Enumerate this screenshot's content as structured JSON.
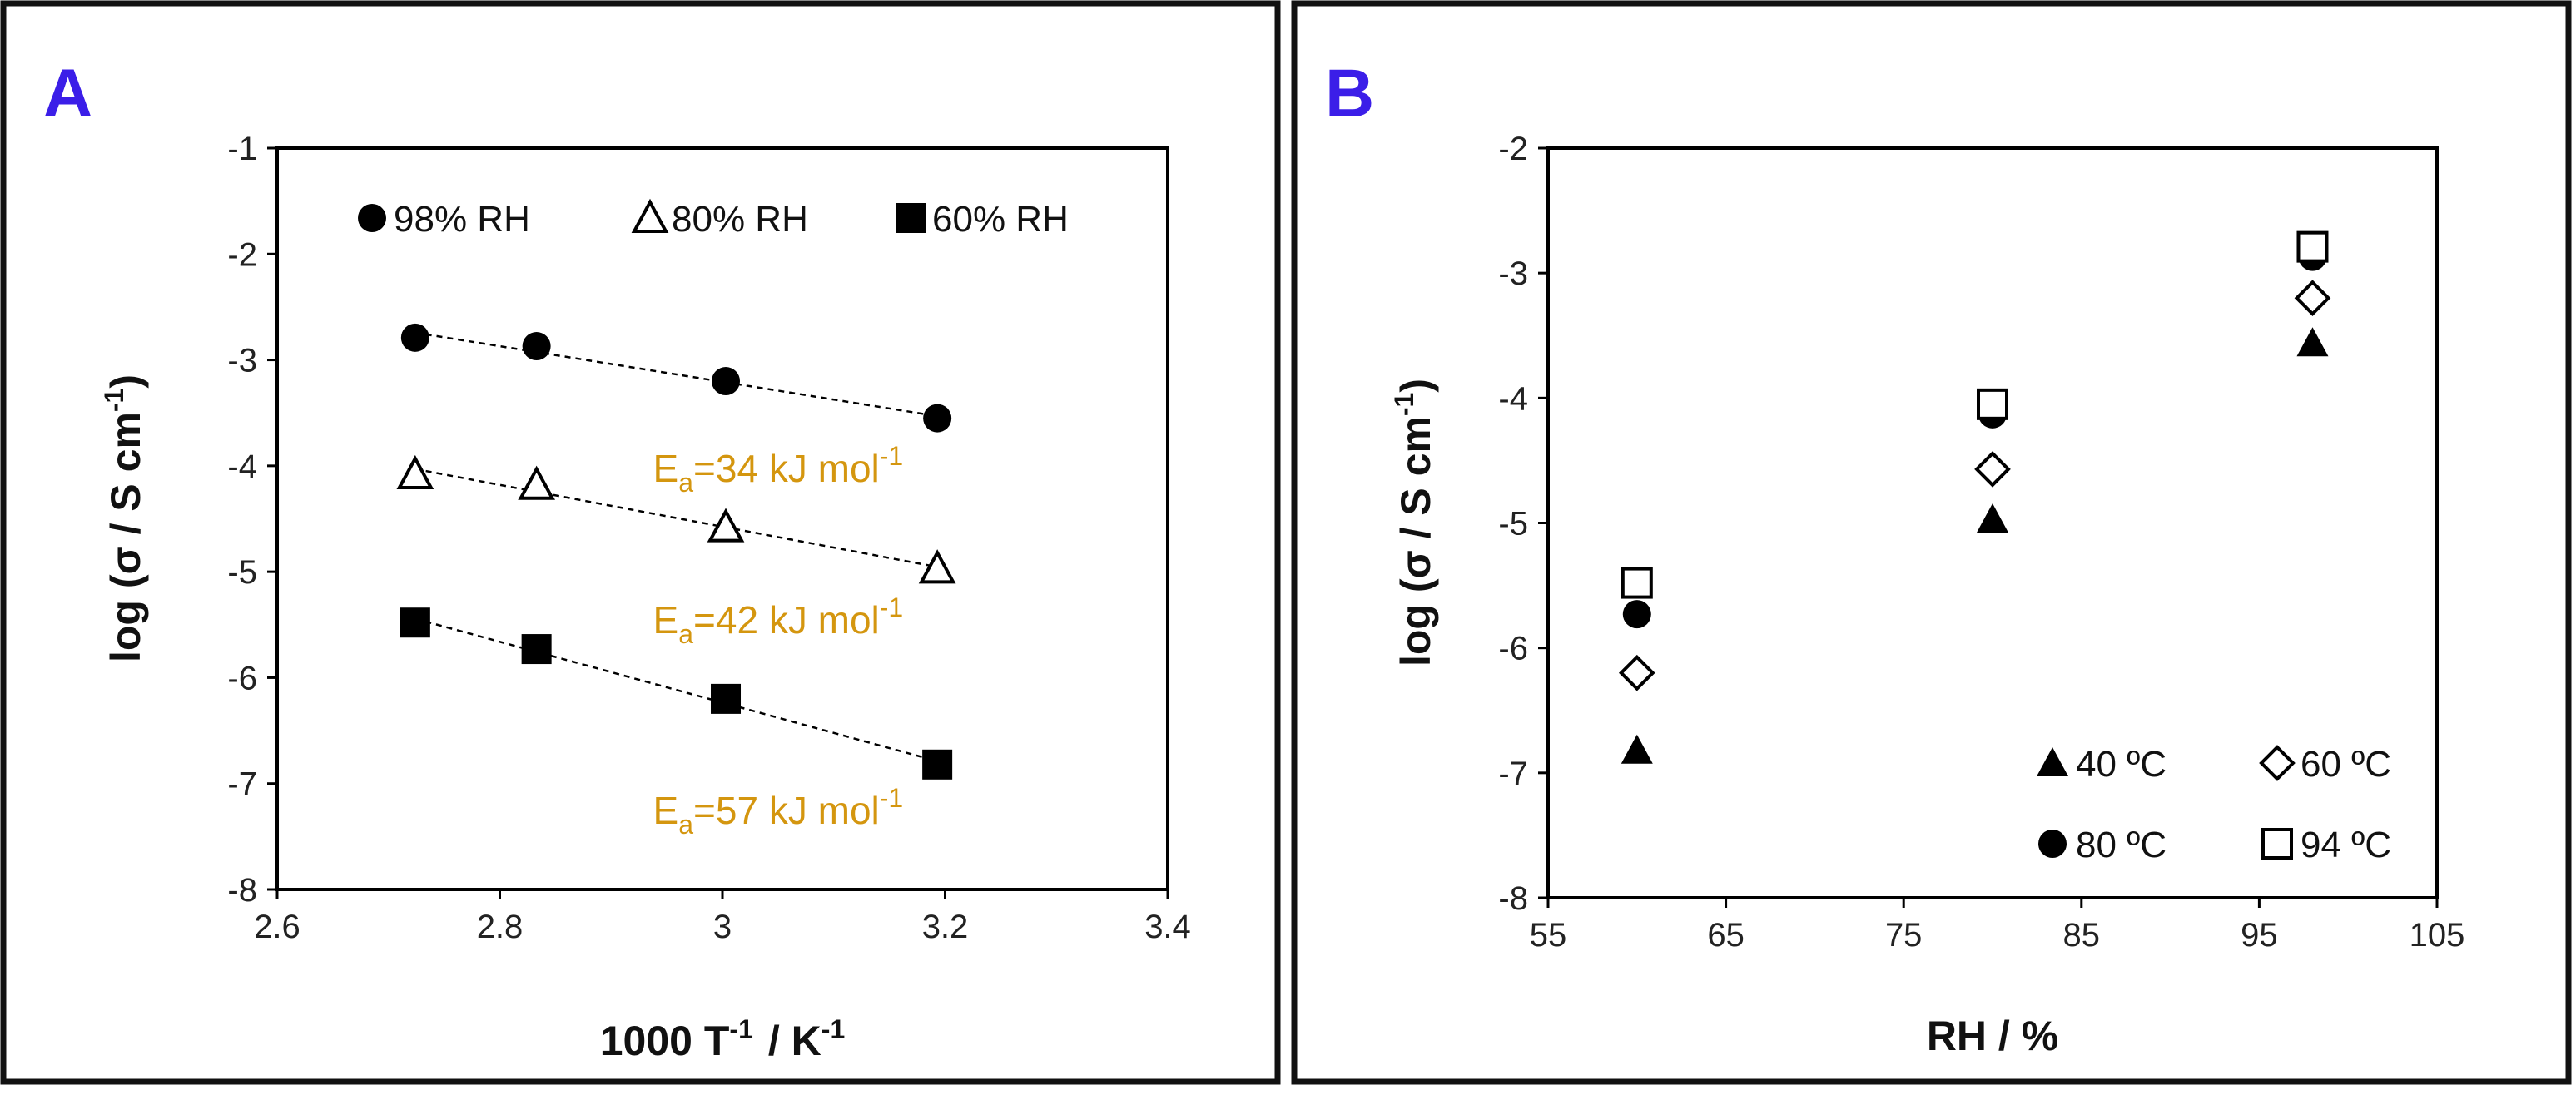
{
  "colors": {
    "panel_letter": "#3b1ee8",
    "annotation": "#d4960f",
    "ink": "#000000"
  },
  "chart_data": [
    {
      "type": "scatter",
      "panel_label": "A",
      "title": "",
      "xlabel": "1000 T",
      "xlabel_sup": "-1",
      "xlabel_unit": "/ K",
      "xlabel_unit_sup": "-1",
      "ylabel": "log (σ / S cm",
      "ylabel_sup": "-1",
      "ylabel_close": ")",
      "xlim": [
        2.6,
        3.4
      ],
      "ylim": [
        -8,
        -1
      ],
      "xticks": [
        2.6,
        2.8,
        3.0,
        3.2,
        3.4
      ],
      "xtick_labels": [
        "2.6",
        "2.8",
        "3",
        "3.2",
        "3.4"
      ],
      "yticks": [
        -8,
        -7,
        -6,
        -5,
        -4,
        -3,
        -2,
        -1
      ],
      "ytick_labels": [
        "-8",
        "-7",
        "-6",
        "-5",
        "-4",
        "-3",
        "-2",
        "-1"
      ],
      "grid": false,
      "legend_position": "top",
      "series": [
        {
          "name": "98% RH",
          "marker": "circle-filled",
          "trendline": true,
          "x": [
            2.724,
            2.833,
            3.003,
            3.193
          ],
          "y": [
            -2.79,
            -2.87,
            -3.2,
            -3.55
          ]
        },
        {
          "name": "80% RH",
          "marker": "triangle-open",
          "trendline": true,
          "x": [
            2.724,
            2.833,
            3.003,
            3.193
          ],
          "y": [
            -4.08,
            -4.18,
            -4.58,
            -4.97
          ]
        },
        {
          "name": "60% RH",
          "marker": "square-filled",
          "trendline": true,
          "x": [
            2.724,
            2.833,
            3.003,
            3.193
          ],
          "y": [
            -5.48,
            -5.73,
            -6.2,
            -6.82
          ]
        }
      ],
      "annotations": [
        {
          "prefix": "E",
          "sub": "a",
          "text": "=34 kJ mol",
          "sup": "-1",
          "x": 3.05,
          "y": -4.15
        },
        {
          "prefix": "E",
          "sub": "a",
          "text": "=42 kJ mol",
          "sup": "-1",
          "x": 3.05,
          "y": -5.58
        },
        {
          "prefix": "E",
          "sub": "a",
          "text": "=57 kJ mol",
          "sup": "-1",
          "x": 3.05,
          "y": -7.38
        }
      ]
    },
    {
      "type": "scatter",
      "panel_label": "B",
      "title": "",
      "xlabel": "RH / %",
      "ylabel": "log (σ / S cm",
      "ylabel_sup": "-1",
      "ylabel_close": ")",
      "xlim": [
        55,
        105
      ],
      "ylim": [
        -8,
        -2
      ],
      "xticks": [
        55,
        65,
        75,
        85,
        95,
        105
      ],
      "xtick_labels": [
        "55",
        "65",
        "75",
        "85",
        "95",
        "105"
      ],
      "yticks": [
        -8,
        -7,
        -6,
        -5,
        -4,
        -3,
        -2
      ],
      "ytick_labels": [
        "-8",
        "-7",
        "-6",
        "-5",
        "-4",
        "-3",
        "-2"
      ],
      "grid": false,
      "legend_position": "bottom-right",
      "series": [
        {
          "name": "40 ºC",
          "marker": "triangle-filled",
          "x": [
            60,
            80,
            98
          ],
          "y": [
            -6.82,
            -4.97,
            -3.56
          ]
        },
        {
          "name": "60 ºC",
          "marker": "diamond-open",
          "x": [
            60,
            80,
            98
          ],
          "y": [
            -6.2,
            -4.57,
            -3.2
          ]
        },
        {
          "name": "80 ºC",
          "marker": "circle-filled",
          "x": [
            60,
            80,
            98
          ],
          "y": [
            -5.73,
            -4.13,
            -2.87
          ]
        },
        {
          "name": "94 ºC",
          "marker": "square-open",
          "x": [
            60,
            80,
            98
          ],
          "y": [
            -5.48,
            -4.05,
            -2.79
          ]
        }
      ]
    }
  ]
}
